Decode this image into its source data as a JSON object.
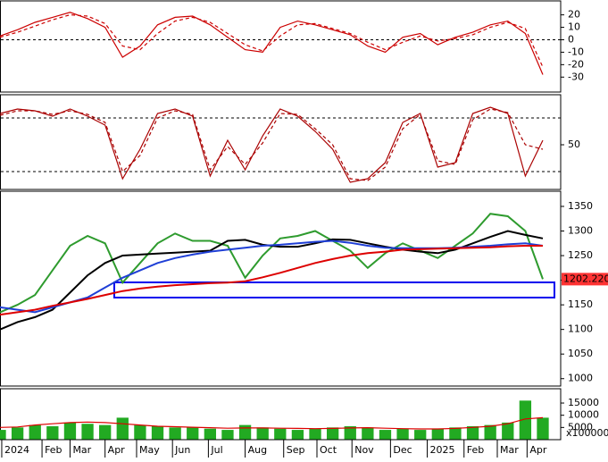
{
  "chart_data": [
    {
      "type": "line",
      "ylim": [
        -42,
        30.5
      ],
      "yticks": [
        20,
        10,
        0,
        -10,
        -20,
        -30
      ],
      "ref_lines": [
        0
      ],
      "series": [
        {
          "color": "#cc0000",
          "style": "solid",
          "values": [
            3,
            8,
            14,
            18,
            22,
            17,
            10,
            -14,
            -5,
            12,
            18,
            19,
            12,
            2,
            -8,
            -10,
            10,
            15,
            12,
            8,
            4,
            -5,
            -10,
            2,
            5,
            -4,
            2,
            6,
            12,
            15,
            5,
            -28
          ]
        },
        {
          "color": "#cc0000",
          "style": "dashed",
          "values": [
            2,
            6,
            11,
            16,
            20,
            19,
            13,
            -5,
            -8,
            5,
            15,
            18,
            14,
            5,
            -4,
            -9,
            3,
            12,
            13,
            9,
            5,
            -2,
            -8,
            -2,
            3,
            -1,
            1,
            4,
            10,
            14,
            9,
            -22
          ]
        }
      ]
    },
    {
      "type": "line",
      "ylim": [
        0,
        105
      ],
      "yticks": [
        50
      ],
      "ref_lines": [
        20,
        80
      ],
      "series": [
        {
          "color": "#aa0000",
          "style": "solid",
          "values": [
            85,
            90,
            88,
            82,
            90,
            82,
            72,
            12,
            45,
            85,
            90,
            82,
            15,
            55,
            22,
            60,
            90,
            82,
            65,
            45,
            8,
            12,
            30,
            75,
            85,
            25,
            30,
            85,
            92,
            85,
            15,
            55
          ]
        },
        {
          "color": "#aa0000",
          "style": "dashed",
          "values": [
            83,
            88,
            88,
            84,
            88,
            84,
            75,
            20,
            38,
            80,
            88,
            84,
            22,
            48,
            28,
            52,
            85,
            84,
            68,
            50,
            12,
            10,
            25,
            68,
            84,
            32,
            28,
            78,
            90,
            86,
            50,
            45
          ]
        }
      ]
    },
    {
      "type": "line",
      "ylim": [
        985,
        1379
      ],
      "yticks": [
        1350,
        1300,
        1250,
        1200,
        1150,
        1100,
        1050,
        1000
      ],
      "last_value_label": "1202.220",
      "series": [
        {
          "color": "#2e9b2e",
          "style": "solid",
          "values": [
            1135,
            1150,
            1170,
            1220,
            1270,
            1290,
            1275,
            1195,
            1235,
            1275,
            1295,
            1280,
            1280,
            1270,
            1205,
            1250,
            1285,
            1290,
            1300,
            1280,
            1260,
            1225,
            1255,
            1275,
            1260,
            1245,
            1270,
            1295,
            1335,
            1330,
            1300,
            1202.22
          ]
        },
        {
          "color": "#000000",
          "style": "solid",
          "values": [
            1100,
            1115,
            1125,
            1140,
            1175,
            1210,
            1235,
            1250,
            1252,
            1254,
            1256,
            1258,
            1260,
            1280,
            1282,
            1272,
            1268,
            1268,
            1275,
            1283,
            1282,
            1275,
            1268,
            1262,
            1258,
            1255,
            1262,
            1275,
            1288,
            1300,
            1292,
            1285
          ]
        },
        {
          "color": "#1f3fd6",
          "style": "solid",
          "values": [
            1145,
            1140,
            1135,
            1145,
            1155,
            1165,
            1185,
            1205,
            1220,
            1235,
            1245,
            1252,
            1258,
            1262,
            1266,
            1270,
            1272,
            1275,
            1278,
            1280,
            1276,
            1270,
            1266,
            1265,
            1265,
            1265,
            1266,
            1268,
            1270,
            1273,
            1275,
            1270
          ]
        },
        {
          "color": "#dd0000",
          "style": "solid",
          "values": [
            1130,
            1135,
            1140,
            1148,
            1155,
            1162,
            1170,
            1178,
            1183,
            1187,
            1190,
            1192,
            1194,
            1195,
            1198,
            1206,
            1215,
            1225,
            1235,
            1243,
            1250,
            1255,
            1258,
            1262,
            1263,
            1264,
            1265,
            1266,
            1267,
            1269,
            1270,
            1270
          ]
        }
      ]
    },
    {
      "type": "bar",
      "ylim": [
        0,
        20500
      ],
      "yticks": [
        15000,
        10000,
        5000
      ],
      "unit_label": "x100000",
      "color": "#22aa22",
      "values": [
        4000,
        5000,
        6000,
        5500,
        7000,
        6500,
        6000,
        9000,
        6000,
        5500,
        5000,
        5000,
        4500,
        4000,
        6000,
        5000,
        4500,
        4000,
        4500,
        5000,
        5500,
        5000,
        4000,
        4500,
        4000,
        4500,
        5000,
        5500,
        6000,
        7000,
        16000,
        9000
      ],
      "series": [
        {
          "color": "#dd0000",
          "style": "solid",
          "values": [
            5000,
            5200,
            6000,
            6500,
            7000,
            7200,
            7000,
            6500,
            6000,
            5500,
            5300,
            5100,
            4900,
            4700,
            4800,
            4800,
            4700,
            4600,
            4500,
            4600,
            4800,
            4900,
            4700,
            4500,
            4400,
            4400,
            4600,
            5000,
            5500,
            6500,
            8500,
            9000
          ]
        }
      ],
      "xlim": [
        0,
        31
      ],
      "xticks": [
        {
          "value": 0.1,
          "label": "2024"
        },
        {
          "value": 2.4,
          "label": "Feb"
        },
        {
          "value": 4.0,
          "label": "Mar"
        },
        {
          "value": 6.0,
          "label": "Apr"
        },
        {
          "value": 7.8,
          "label": "May"
        },
        {
          "value": 9.85,
          "label": "Jun"
        },
        {
          "value": 11.9,
          "label": "Jul"
        },
        {
          "value": 14.0,
          "label": "Aug"
        },
        {
          "value": 16.2,
          "label": "Sep"
        },
        {
          "value": 18.1,
          "label": "Oct"
        },
        {
          "value": 20.1,
          "label": "Nov"
        },
        {
          "value": 22.3,
          "label": "Dec"
        },
        {
          "value": 24.4,
          "label": "2025"
        },
        {
          "value": 26.5,
          "label": "Feb"
        },
        {
          "value": 28.4,
          "label": "Mar"
        },
        {
          "value": 30.1,
          "label": "Apr"
        }
      ]
    }
  ]
}
